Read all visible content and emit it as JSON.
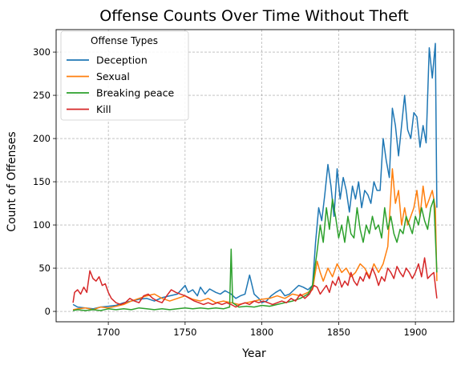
{
  "chart_data": {
    "type": "line",
    "title": "Offense Counts Over Time Without Theft",
    "xlabel": "Year",
    "ylabel": "Count of Offenses",
    "xlim": [
      1666,
      1925
    ],
    "ylim": [
      -12,
      326
    ],
    "xticks": [
      1700,
      1750,
      1800,
      1850,
      1900
    ],
    "yticks": [
      0,
      50,
      100,
      150,
      200,
      250,
      300
    ],
    "grid": true,
    "legend": {
      "title": "Offense Types",
      "placement": "top-left"
    },
    "series": [
      {
        "name": "Deception",
        "color": "#1f77b4",
        "points": [
          [
            1677,
            8
          ],
          [
            1680,
            5
          ],
          [
            1685,
            4
          ],
          [
            1690,
            3
          ],
          [
            1695,
            5
          ],
          [
            1700,
            6
          ],
          [
            1705,
            7
          ],
          [
            1710,
            10
          ],
          [
            1715,
            12
          ],
          [
            1720,
            14
          ],
          [
            1725,
            15
          ],
          [
            1730,
            12
          ],
          [
            1735,
            16
          ],
          [
            1740,
            18
          ],
          [
            1745,
            20
          ],
          [
            1750,
            30
          ],
          [
            1752,
            22
          ],
          [
            1755,
            25
          ],
          [
            1758,
            18
          ],
          [
            1760,
            28
          ],
          [
            1763,
            20
          ],
          [
            1766,
            26
          ],
          [
            1770,
            22
          ],
          [
            1773,
            20
          ],
          [
            1776,
            24
          ],
          [
            1780,
            20
          ],
          [
            1783,
            15
          ],
          [
            1786,
            18
          ],
          [
            1789,
            20
          ],
          [
            1792,
            42
          ],
          [
            1795,
            20
          ],
          [
            1798,
            15
          ],
          [
            1800,
            10
          ],
          [
            1803,
            12
          ],
          [
            1806,
            18
          ],
          [
            1809,
            22
          ],
          [
            1812,
            25
          ],
          [
            1815,
            18
          ],
          [
            1818,
            20
          ],
          [
            1821,
            25
          ],
          [
            1824,
            30
          ],
          [
            1827,
            28
          ],
          [
            1830,
            25
          ],
          [
            1833,
            30
          ],
          [
            1835,
            80
          ],
          [
            1837,
            120
          ],
          [
            1839,
            105
          ],
          [
            1841,
            135
          ],
          [
            1843,
            170
          ],
          [
            1845,
            145
          ],
          [
            1847,
            110
          ],
          [
            1849,
            165
          ],
          [
            1851,
            130
          ],
          [
            1853,
            155
          ],
          [
            1855,
            140
          ],
          [
            1857,
            115
          ],
          [
            1859,
            145
          ],
          [
            1861,
            130
          ],
          [
            1863,
            150
          ],
          [
            1865,
            120
          ],
          [
            1867,
            140
          ],
          [
            1869,
            135
          ],
          [
            1871,
            125
          ],
          [
            1873,
            150
          ],
          [
            1875,
            140
          ],
          [
            1877,
            140
          ],
          [
            1879,
            200
          ],
          [
            1881,
            175
          ],
          [
            1883,
            155
          ],
          [
            1885,
            235
          ],
          [
            1887,
            215
          ],
          [
            1889,
            180
          ],
          [
            1891,
            215
          ],
          [
            1893,
            250
          ],
          [
            1895,
            210
          ],
          [
            1897,
            200
          ],
          [
            1899,
            230
          ],
          [
            1901,
            225
          ],
          [
            1903,
            190
          ],
          [
            1905,
            215
          ],
          [
            1907,
            195
          ],
          [
            1909,
            305
          ],
          [
            1911,
            270
          ],
          [
            1913,
            310
          ],
          [
            1914,
            120
          ]
        ]
      },
      {
        "name": "Sexual",
        "color": "#ff7f0e",
        "points": [
          [
            1677,
            2
          ],
          [
            1680,
            3
          ],
          [
            1685,
            4
          ],
          [
            1690,
            2
          ],
          [
            1695,
            5
          ],
          [
            1700,
            4
          ],
          [
            1705,
            6
          ],
          [
            1710,
            8
          ],
          [
            1715,
            12
          ],
          [
            1720,
            15
          ],
          [
            1725,
            18
          ],
          [
            1730,
            20
          ],
          [
            1735,
            15
          ],
          [
            1740,
            12
          ],
          [
            1745,
            15
          ],
          [
            1750,
            18
          ],
          [
            1755,
            14
          ],
          [
            1760,
            12
          ],
          [
            1765,
            15
          ],
          [
            1770,
            10
          ],
          [
            1775,
            12
          ],
          [
            1780,
            10
          ],
          [
            1785,
            8
          ],
          [
            1790,
            10
          ],
          [
            1795,
            12
          ],
          [
            1800,
            14
          ],
          [
            1805,
            15
          ],
          [
            1810,
            18
          ],
          [
            1815,
            15
          ],
          [
            1820,
            20
          ],
          [
            1825,
            18
          ],
          [
            1830,
            22
          ],
          [
            1833,
            25
          ],
          [
            1836,
            58
          ],
          [
            1838,
            45
          ],
          [
            1840,
            35
          ],
          [
            1843,
            50
          ],
          [
            1846,
            40
          ],
          [
            1849,
            55
          ],
          [
            1852,
            45
          ],
          [
            1855,
            50
          ],
          [
            1858,
            40
          ],
          [
            1861,
            45
          ],
          [
            1864,
            55
          ],
          [
            1867,
            50
          ],
          [
            1870,
            40
          ],
          [
            1873,
            55
          ],
          [
            1876,
            45
          ],
          [
            1879,
            55
          ],
          [
            1882,
            75
          ],
          [
            1885,
            165
          ],
          [
            1887,
            125
          ],
          [
            1889,
            140
          ],
          [
            1891,
            100
          ],
          [
            1893,
            120
          ],
          [
            1895,
            100
          ],
          [
            1897,
            110
          ],
          [
            1899,
            120
          ],
          [
            1901,
            140
          ],
          [
            1903,
            110
          ],
          [
            1905,
            145
          ],
          [
            1907,
            120
          ],
          [
            1909,
            130
          ],
          [
            1911,
            140
          ],
          [
            1913,
            120
          ],
          [
            1914,
            35
          ]
        ]
      },
      {
        "name": "Breaking peace",
        "color": "#2ca02c",
        "points": [
          [
            1677,
            1
          ],
          [
            1680,
            2
          ],
          [
            1685,
            1
          ],
          [
            1690,
            2
          ],
          [
            1695,
            1
          ],
          [
            1700,
            3
          ],
          [
            1705,
            2
          ],
          [
            1710,
            3
          ],
          [
            1715,
            2
          ],
          [
            1720,
            4
          ],
          [
            1725,
            3
          ],
          [
            1730,
            2
          ],
          [
            1735,
            3
          ],
          [
            1740,
            2
          ],
          [
            1745,
            3
          ],
          [
            1750,
            4
          ],
          [
            1755,
            3
          ],
          [
            1760,
            4
          ],
          [
            1765,
            3
          ],
          [
            1770,
            4
          ],
          [
            1775,
            3
          ],
          [
            1779,
            5
          ],
          [
            1780,
            72
          ],
          [
            1781,
            10
          ],
          [
            1785,
            5
          ],
          [
            1790,
            6
          ],
          [
            1795,
            5
          ],
          [
            1800,
            7
          ],
          [
            1805,
            6
          ],
          [
            1810,
            8
          ],
          [
            1815,
            10
          ],
          [
            1820,
            12
          ],
          [
            1825,
            15
          ],
          [
            1830,
            20
          ],
          [
            1833,
            30
          ],
          [
            1836,
            70
          ],
          [
            1838,
            100
          ],
          [
            1840,
            80
          ],
          [
            1842,
            120
          ],
          [
            1844,
            95
          ],
          [
            1846,
            130
          ],
          [
            1848,
            110
          ],
          [
            1850,
            85
          ],
          [
            1852,
            100
          ],
          [
            1854,
            80
          ],
          [
            1856,
            110
          ],
          [
            1858,
            90
          ],
          [
            1860,
            85
          ],
          [
            1862,
            120
          ],
          [
            1864,
            95
          ],
          [
            1866,
            80
          ],
          [
            1868,
            100
          ],
          [
            1870,
            90
          ],
          [
            1872,
            110
          ],
          [
            1874,
            95
          ],
          [
            1876,
            100
          ],
          [
            1878,
            85
          ],
          [
            1880,
            120
          ],
          [
            1882,
            95
          ],
          [
            1884,
            110
          ],
          [
            1886,
            90
          ],
          [
            1888,
            80
          ],
          [
            1890,
            95
          ],
          [
            1892,
            90
          ],
          [
            1894,
            110
          ],
          [
            1896,
            100
          ],
          [
            1898,
            90
          ],
          [
            1900,
            110
          ],
          [
            1902,
            100
          ],
          [
            1904,
            120
          ],
          [
            1906,
            105
          ],
          [
            1908,
            95
          ],
          [
            1910,
            120
          ],
          [
            1912,
            130
          ],
          [
            1914,
            45
          ]
        ]
      },
      {
        "name": "Kill",
        "color": "#d62728",
        "points": [
          [
            1677,
            10
          ],
          [
            1678,
            22
          ],
          [
            1680,
            25
          ],
          [
            1682,
            20
          ],
          [
            1684,
            28
          ],
          [
            1686,
            22
          ],
          [
            1688,
            47
          ],
          [
            1690,
            38
          ],
          [
            1692,
            35
          ],
          [
            1694,
            40
          ],
          [
            1696,
            30
          ],
          [
            1698,
            32
          ],
          [
            1700,
            22
          ],
          [
            1702,
            15
          ],
          [
            1705,
            10
          ],
          [
            1708,
            8
          ],
          [
            1711,
            10
          ],
          [
            1714,
            15
          ],
          [
            1717,
            12
          ],
          [
            1720,
            10
          ],
          [
            1723,
            18
          ],
          [
            1726,
            20
          ],
          [
            1729,
            15
          ],
          [
            1732,
            12
          ],
          [
            1735,
            10
          ],
          [
            1738,
            18
          ],
          [
            1741,
            25
          ],
          [
            1744,
            22
          ],
          [
            1747,
            20
          ],
          [
            1750,
            18
          ],
          [
            1753,
            15
          ],
          [
            1756,
            12
          ],
          [
            1759,
            10
          ],
          [
            1762,
            8
          ],
          [
            1765,
            10
          ],
          [
            1768,
            8
          ],
          [
            1771,
            10
          ],
          [
            1774,
            8
          ],
          [
            1777,
            10
          ],
          [
            1780,
            8
          ],
          [
            1783,
            5
          ],
          [
            1786,
            8
          ],
          [
            1789,
            10
          ],
          [
            1792,
            8
          ],
          [
            1795,
            12
          ],
          [
            1798,
            10
          ],
          [
            1801,
            12
          ],
          [
            1804,
            10
          ],
          [
            1807,
            8
          ],
          [
            1810,
            10
          ],
          [
            1813,
            12
          ],
          [
            1816,
            10
          ],
          [
            1819,
            15
          ],
          [
            1822,
            12
          ],
          [
            1825,
            20
          ],
          [
            1828,
            15
          ],
          [
            1831,
            20
          ],
          [
            1834,
            30
          ],
          [
            1836,
            28
          ],
          [
            1838,
            20
          ],
          [
            1840,
            25
          ],
          [
            1842,
            30
          ],
          [
            1844,
            22
          ],
          [
            1846,
            35
          ],
          [
            1848,
            30
          ],
          [
            1850,
            40
          ],
          [
            1852,
            28
          ],
          [
            1854,
            35
          ],
          [
            1856,
            30
          ],
          [
            1858,
            45
          ],
          [
            1860,
            35
          ],
          [
            1862,
            30
          ],
          [
            1864,
            40
          ],
          [
            1866,
            35
          ],
          [
            1868,
            45
          ],
          [
            1870,
            38
          ],
          [
            1872,
            50
          ],
          [
            1874,
            42
          ],
          [
            1876,
            30
          ],
          [
            1878,
            40
          ],
          [
            1880,
            35
          ],
          [
            1882,
            50
          ],
          [
            1884,
            45
          ],
          [
            1886,
            38
          ],
          [
            1888,
            52
          ],
          [
            1890,
            45
          ],
          [
            1892,
            40
          ],
          [
            1894,
            50
          ],
          [
            1896,
            45
          ],
          [
            1898,
            38
          ],
          [
            1900,
            45
          ],
          [
            1902,
            55
          ],
          [
            1904,
            40
          ],
          [
            1906,
            62
          ],
          [
            1908,
            38
          ],
          [
            1910,
            42
          ],
          [
            1912,
            45
          ],
          [
            1914,
            15
          ]
        ]
      }
    ]
  }
}
